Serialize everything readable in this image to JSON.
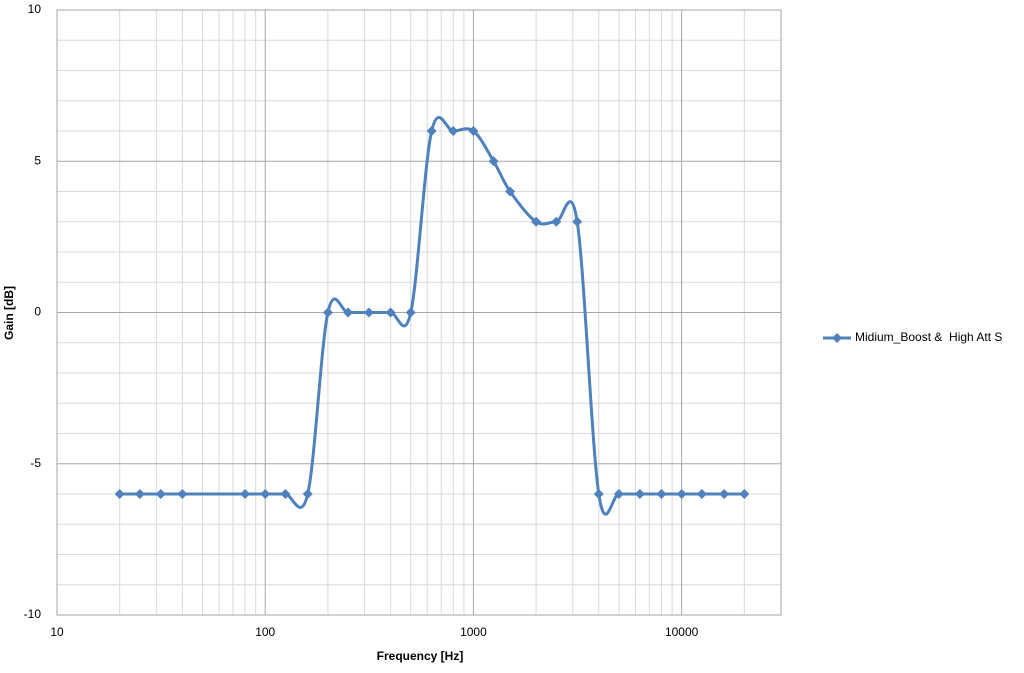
{
  "chart_data": {
    "type": "line",
    "x_label": "Frequency [Hz]",
    "y_label": "Gain [dB]",
    "x": [
      20,
      25,
      31.5,
      40,
      80,
      100,
      125,
      160,
      200,
      250,
      315,
      400,
      500,
      630,
      800,
      1000,
      1250,
      1500,
      2000,
      2500,
      3150,
      4000,
      5000,
      6300,
      8000,
      10000,
      12500,
      16000,
      20000
    ],
    "series": [
      {
        "name": "Midium_Boost &  High Att S",
        "color": "#4f81bd",
        "values": [
          -6,
          -6,
          -6,
          -6,
          -6,
          -6,
          -6,
          -6,
          0,
          0,
          0,
          0,
          0,
          6,
          6,
          6,
          5,
          4,
          3,
          3,
          3,
          -6,
          -6,
          -6,
          -6,
          -6,
          -6,
          -6,
          -6
        ]
      }
    ],
    "xlim": [
      10,
      30000
    ],
    "xticks": [
      10,
      100,
      1000,
      10000
    ],
    "x_log": true,
    "ylim": [
      -10,
      10
    ],
    "yticks": [
      -10,
      -5,
      0,
      5,
      10
    ],
    "grid": true,
    "smooth": true,
    "legend": "right"
  }
}
